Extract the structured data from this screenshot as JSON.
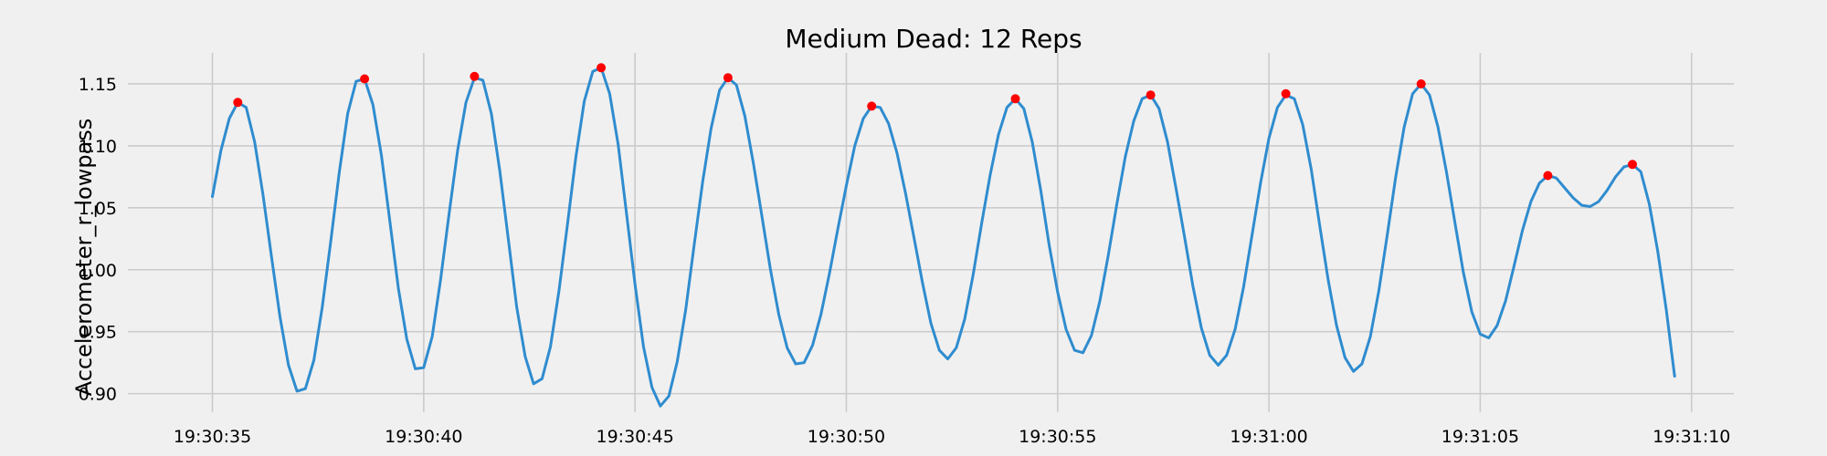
{
  "chart_data": {
    "type": "line",
    "title": "Medium Dead: 12 Reps",
    "xlabel": "",
    "ylabel": "Accelerometer_r_lowpass",
    "grid": true,
    "x_unit": "seconds",
    "xlim": [
      "19:30:33.0",
      "19:31:11.0"
    ],
    "ylim": [
      0.885,
      1.175
    ],
    "x_ticks": [
      "19:30:35",
      "19:30:40",
      "19:30:45",
      "19:30:50",
      "19:30:55",
      "19:31:00",
      "19:31:05",
      "19:31:10"
    ],
    "y_ticks": [
      "0.90",
      "0.95",
      "1.00",
      "1.05",
      "1.10",
      "1.15"
    ],
    "line_color": "#2f8ccf",
    "peak_color": "#ff0000",
    "series": [
      {
        "x": [
          "19:30:35.0",
          "19:30:35.2",
          "19:30:35.4",
          "19:30:35.6",
          "19:30:35.8",
          "19:30:36.0",
          "19:30:36.2",
          "19:30:36.4",
          "19:30:36.6",
          "19:30:36.8",
          "19:30:37.0",
          "19:30:37.2",
          "19:30:37.4",
          "19:30:37.6",
          "19:30:37.8",
          "19:30:38.0",
          "19:30:38.2",
          "19:30:38.4",
          "19:30:38.6",
          "19:30:38.8",
          "19:30:39.0",
          "19:30:39.2",
          "19:30:39.4",
          "19:30:39.6",
          "19:30:39.8",
          "19:30:40.0",
          "19:30:40.2",
          "19:30:40.4",
          "19:30:40.6",
          "19:30:40.8",
          "19:30:41.0",
          "19:30:41.2",
          "19:30:41.4",
          "19:30:41.6",
          "19:30:41.8",
          "19:30:42.0",
          "19:30:42.2",
          "19:30:42.4",
          "19:30:42.6",
          "19:30:42.8",
          "19:30:43.0",
          "19:30:43.2",
          "19:30:43.4",
          "19:30:43.6",
          "19:30:43.8",
          "19:30:44.0",
          "19:30:44.2",
          "19:30:44.4",
          "19:30:44.6",
          "19:30:44.8",
          "19:30:45.0",
          "19:30:45.2",
          "19:30:45.4",
          "19:30:45.6",
          "19:30:45.8",
          "19:30:46.0",
          "19:30:46.2",
          "19:30:46.4",
          "19:30:46.6",
          "19:30:46.8",
          "19:30:47.0",
          "19:30:47.2",
          "19:30:47.4",
          "19:30:47.6",
          "19:30:47.8",
          "19:30:48.0",
          "19:30:48.2",
          "19:30:48.4",
          "19:30:48.6",
          "19:30:48.8",
          "19:30:49.0",
          "19:30:49.2",
          "19:30:49.4",
          "19:30:49.6",
          "19:30:49.8",
          "19:30:50.0",
          "19:30:50.2",
          "19:30:50.4",
          "19:30:50.6",
          "19:30:50.8",
          "19:30:51.0",
          "19:30:51.2",
          "19:30:51.4",
          "19:30:51.6",
          "19:30:51.8",
          "19:30:52.0",
          "19:30:52.2",
          "19:30:52.4",
          "19:30:52.6",
          "19:30:52.8",
          "19:30:53.0",
          "19:30:53.2",
          "19:30:53.4",
          "19:30:53.6",
          "19:30:53.8",
          "19:30:54.0",
          "19:30:54.2",
          "19:30:54.4",
          "19:30:54.6",
          "19:30:54.8",
          "19:30:55.0",
          "19:30:55.2",
          "19:30:55.4",
          "19:30:55.6",
          "19:30:55.8",
          "19:30:56.0",
          "19:30:56.2",
          "19:30:56.4",
          "19:30:56.6",
          "19:30:56.8",
          "19:30:57.0",
          "19:30:57.2",
          "19:30:57.4",
          "19:30:57.6",
          "19:30:57.8",
          "19:30:58.0",
          "19:30:58.2",
          "19:30:58.4",
          "19:30:58.6",
          "19:30:58.8",
          "19:30:59.0",
          "19:30:59.2",
          "19:30:59.4",
          "19:30:59.6",
          "19:30:59.8",
          "19:31:00.0",
          "19:31:00.2",
          "19:31:00.4",
          "19:31:00.6",
          "19:31:00.8",
          "19:31:01.0",
          "19:31:01.2",
          "19:31:01.4",
          "19:31:01.6",
          "19:31:01.8",
          "19:31:02.0",
          "19:31:02.2",
          "19:31:02.4",
          "19:31:02.6",
          "19:31:02.8",
          "19:31:03.0",
          "19:31:03.2",
          "19:31:03.4",
          "19:31:03.6",
          "19:31:03.8",
          "19:31:04.0",
          "19:31:04.2",
          "19:31:04.4",
          "19:31:04.6",
          "19:31:04.8",
          "19:31:05.0",
          "19:31:05.2",
          "19:31:05.4",
          "19:31:05.6",
          "19:31:05.8",
          "19:31:06.0",
          "19:31:06.2",
          "19:31:06.4",
          "19:31:06.6",
          "19:31:06.8",
          "19:31:07.0",
          "19:31:07.2",
          "19:31:07.4",
          "19:31:07.6",
          "19:31:07.8",
          "19:31:08.0",
          "19:31:08.2",
          "19:31:08.4",
          "19:31:08.6",
          "19:31:08.8",
          "19:31:09.0",
          "19:31:09.2",
          "19:31:09.4",
          "19:31:09.6"
        ],
        "values": [
          1.059,
          1.096,
          1.122,
          1.135,
          1.131,
          1.103,
          1.06,
          1.01,
          0.962,
          0.923,
          0.902,
          0.904,
          0.927,
          0.97,
          1.023,
          1.078,
          1.126,
          1.152,
          1.154,
          1.133,
          1.092,
          1.039,
          0.985,
          0.944,
          0.92,
          0.921,
          0.946,
          0.992,
          1.045,
          1.096,
          1.135,
          1.155,
          1.153,
          1.126,
          1.08,
          1.025,
          0.97,
          0.93,
          0.908,
          0.912,
          0.938,
          0.983,
          1.036,
          1.091,
          1.136,
          1.16,
          1.163,
          1.142,
          1.101,
          1.045,
          0.988,
          0.938,
          0.905,
          0.89,
          0.898,
          0.926,
          0.968,
          1.02,
          1.071,
          1.114,
          1.145,
          1.155,
          1.149,
          1.124,
          1.086,
          1.044,
          1.001,
          0.964,
          0.937,
          0.924,
          0.925,
          0.939,
          0.964,
          0.997,
          1.033,
          1.068,
          1.1,
          1.122,
          1.132,
          1.131,
          1.118,
          1.094,
          1.062,
          1.026,
          0.99,
          0.957,
          0.935,
          0.928,
          0.937,
          0.96,
          0.996,
          1.037,
          1.076,
          1.109,
          1.131,
          1.138,
          1.13,
          1.103,
          1.064,
          1.02,
          0.982,
          0.952,
          0.935,
          0.933,
          0.947,
          0.975,
          1.012,
          1.053,
          1.091,
          1.12,
          1.138,
          1.141,
          1.13,
          1.103,
          1.066,
          1.027,
          0.987,
          0.953,
          0.931,
          0.923,
          0.931,
          0.952,
          0.986,
          1.028,
          1.07,
          1.106,
          1.131,
          1.141,
          1.138,
          1.117,
          1.081,
          1.036,
          0.992,
          0.955,
          0.929,
          0.918,
          0.924,
          0.946,
          0.983,
          1.028,
          1.075,
          1.115,
          1.142,
          1.15,
          1.141,
          1.115,
          1.079,
          1.038,
          0.998,
          0.966,
          0.948,
          0.945,
          0.955,
          0.975,
          1.003,
          1.032,
          1.055,
          1.07,
          1.076,
          1.074,
          1.066,
          1.058,
          1.052,
          1.051,
          1.055,
          1.064,
          1.075,
          1.083,
          1.085,
          1.079,
          1.053,
          1.015,
          0.968,
          0.914
        ]
      }
    ],
    "peaks": {
      "x": [
        "19:30:35.6",
        "19:30:38.6",
        "19:30:41.2",
        "19:30:44.2",
        "19:30:47.2",
        "19:30:50.6",
        "19:30:54.0",
        "19:30:57.2",
        "19:31:00.4",
        "19:31:03.6",
        "19:31:06.6",
        "19:31:08.6"
      ],
      "values": [
        1.135,
        1.154,
        1.156,
        1.163,
        1.155,
        1.132,
        1.138,
        1.141,
        1.142,
        1.15,
        1.076,
        1.085
      ]
    }
  }
}
